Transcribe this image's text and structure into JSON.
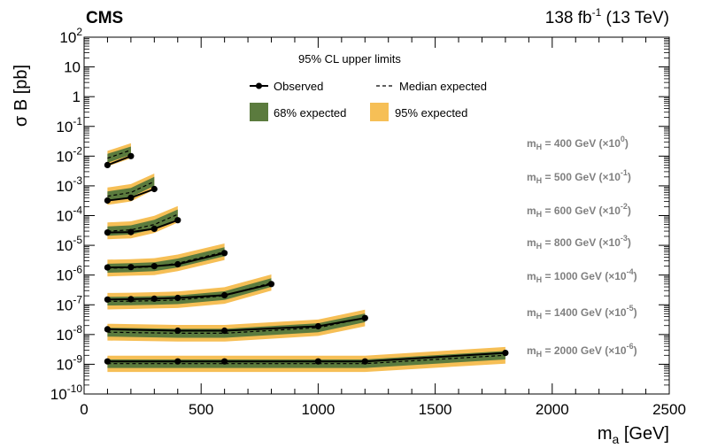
{
  "header": {
    "experiment": "CMS",
    "lumi_value": "138 fb",
    "lumi_exp": "-1",
    "lumi_energy": " (13 TeV)"
  },
  "chart_data": {
    "type": "line",
    "title": "95% CL upper limits",
    "xlabel_main": "m",
    "xlabel_sub": "a",
    "xlabel_unit": "  [GeV]",
    "ylabel": "σ B [pb]",
    "xlim": [
      0,
      2500
    ],
    "ylim": [
      1e-10,
      100
    ],
    "yscale": "log",
    "x_ticks": [
      0,
      500,
      1000,
      1500,
      2000,
      2500
    ],
    "y_tick_exponents": [
      -10,
      -9,
      -8,
      -7,
      -6,
      -5,
      -4,
      -3,
      -2,
      -1,
      0,
      1,
      2
    ],
    "legend": {
      "placement": "top-center",
      "observed": "Observed",
      "median": "Median expected",
      "band68": "68% expected",
      "band95": "95% expected"
    },
    "colors": {
      "band68": "#5b7b3e",
      "band95": "#f6bf56",
      "observed": "#000000",
      "label": "#808080"
    },
    "series": [
      {
        "mH_label": "400 GeV",
        "scale_exp": "0",
        "x": [
          100,
          200
        ],
        "observed": [
          0.005,
          0.01
        ],
        "expected": [
          0.0085,
          0.016
        ],
        "band68": [
          [
            0.006,
            0.012
          ],
          [
            0.011,
            0.021
          ]
        ],
        "band95": [
          [
            0.0045,
            0.015
          ],
          [
            0.0085,
            0.027
          ]
        ]
      },
      {
        "mH_label": "500 GeV",
        "scale_exp": "-1",
        "x": [
          100,
          200,
          300
        ],
        "observed": [
          0.00032,
          0.0004,
          0.00078
        ],
        "expected": [
          0.00045,
          0.0006,
          0.0014
        ],
        "band68": [
          [
            0.00032,
            0.00065
          ],
          [
            0.00042,
            0.00085
          ],
          [
            0.001,
            0.002
          ]
        ],
        "band95": [
          [
            0.00023,
            0.00088
          ],
          [
            0.0003,
            0.00115
          ],
          [
            0.00075,
            0.0026
          ]
        ]
      },
      {
        "mH_label": "600 GeV",
        "scale_exp": "-2",
        "x": [
          100,
          200,
          300,
          400
        ],
        "observed": [
          2.7e-05,
          2.8e-05,
          3.6e-05,
          7e-05
        ],
        "expected": [
          3e-05,
          3.3e-05,
          5e-05,
          0.00011
        ],
        "band68": [
          [
            2.1e-05,
            4.3e-05
          ],
          [
            2.3e-05,
            4.7e-05
          ],
          [
            3.5e-05,
            7.2e-05
          ],
          [
            7.8e-05,
            0.00016
          ]
        ],
        "band95": [
          [
            1.6e-05,
            5.9e-05
          ],
          [
            1.7e-05,
            6.4e-05
          ],
          [
            2.6e-05,
            9.8e-05
          ],
          [
            5.8e-05,
            0.00021
          ]
        ]
      },
      {
        "mH_label": "800 GeV",
        "scale_exp": "-3",
        "x": [
          100,
          200,
          300,
          400,
          600
        ],
        "observed": [
          1.8e-06,
          1.85e-06,
          2e-06,
          2.3e-06,
          5.5e-06
        ],
        "expected": [
          1.7e-06,
          1.75e-06,
          1.9e-06,
          2.5e-06,
          6e-06
        ],
        "band68": [
          [
            1.2e-06,
            2.4e-06
          ],
          [
            1.25e-06,
            2.5e-06
          ],
          [
            1.35e-06,
            2.7e-06
          ],
          [
            1.8e-06,
            3.6e-06
          ],
          [
            4.3e-06,
            8.6e-06
          ]
        ],
        "band95": [
          [
            9e-07,
            3.3e-06
          ],
          [
            9.5e-07,
            3.4e-06
          ],
          [
            1e-06,
            3.7e-06
          ],
          [
            1.35e-06,
            4.9e-06
          ],
          [
            3.2e-06,
            1.15e-05
          ]
        ]
      },
      {
        "mH_label": "1000 GeV",
        "scale_exp": "-4",
        "x": [
          100,
          200,
          300,
          400,
          600,
          800
        ],
        "observed": [
          1.5e-07,
          1.55e-07,
          1.6e-07,
          1.7e-07,
          2.1e-07,
          5e-07
        ],
        "expected": [
          1.3e-07,
          1.32e-07,
          1.38e-07,
          1.45e-07,
          2e-07,
          5.5e-07
        ],
        "band68": [
          [
            9.5e-08,
            1.85e-07
          ],
          [
            9.6e-08,
            1.88e-07
          ],
          [
            1e-07,
            1.95e-07
          ],
          [
            1.05e-07,
            2.05e-07
          ],
          [
            1.45e-07,
            2.85e-07
          ],
          [
            4e-07,
            7.8e-07
          ]
        ],
        "band95": [
          [
            7e-08,
            2.5e-07
          ],
          [
            7.2e-08,
            2.55e-07
          ],
          [
            7.5e-08,
            2.65e-07
          ],
          [
            7.8e-08,
            2.8e-07
          ],
          [
            1.08e-07,
            3.9e-07
          ],
          [
            3e-07,
            1.05e-06
          ]
        ]
      },
      {
        "mH_label": "1400 GeV",
        "scale_exp": "-5",
        "x": [
          100,
          400,
          600,
          1000,
          1200
        ],
        "observed": [
          1.5e-08,
          1.35e-08,
          1.35e-08,
          1.9e-08,
          3.6e-08
        ],
        "expected": [
          1.2e-08,
          1.1e-08,
          1.1e-08,
          1.7e-08,
          3.6e-08
        ],
        "band68": [
          [
            8.5e-09,
            1.7e-08
          ],
          [
            7.8e-09,
            1.55e-08
          ],
          [
            7.8e-09,
            1.55e-08
          ],
          [
            1.2e-08,
            2.4e-08
          ],
          [
            2.6e-08,
            5.1e-08
          ]
        ],
        "band95": [
          [
            6.3e-09,
            2.3e-08
          ],
          [
            5.8e-09,
            2.1e-08
          ],
          [
            5.8e-09,
            2.1e-08
          ],
          [
            9e-09,
            3.2e-08
          ],
          [
            1.9e-08,
            6.9e-08
          ]
        ]
      },
      {
        "mH_label": "2000 GeV",
        "scale_exp": "-6",
        "x": [
          100,
          400,
          600,
          1000,
          1200,
          1800
        ],
        "observed": [
          1.25e-09,
          1.25e-09,
          1.25e-09,
          1.25e-09,
          1.25e-09,
          2.4e-09
        ],
        "expected": [
          1.05e-09,
          1.05e-09,
          1.05e-09,
          1.05e-09,
          1.05e-09,
          2e-09
        ],
        "band68": [
          [
            7.5e-10,
            1.45e-09
          ],
          [
            7.5e-10,
            1.45e-09
          ],
          [
            7.5e-10,
            1.45e-09
          ],
          [
            7.5e-10,
            1.45e-09
          ],
          [
            7.5e-10,
            1.45e-09
          ],
          [
            1.45e-09,
            2.8e-09
          ]
        ],
        "band95": [
          [
            5.5e-10,
            1.95e-09
          ],
          [
            5.5e-10,
            1.95e-09
          ],
          [
            5.5e-10,
            1.95e-09
          ],
          [
            5.5e-10,
            1.95e-09
          ],
          [
            5.5e-10,
            1.95e-09
          ],
          [
            1.05e-09,
            3.8e-09
          ]
        ]
      }
    ]
  }
}
